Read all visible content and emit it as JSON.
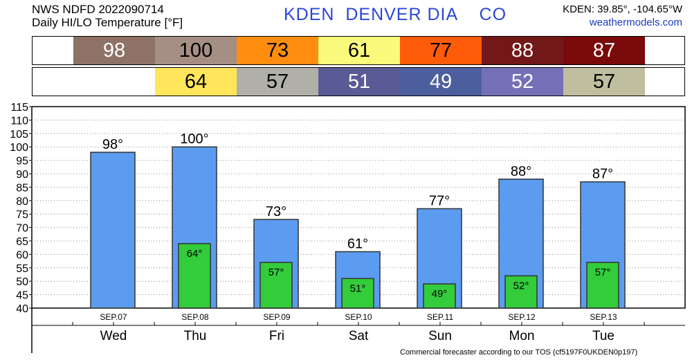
{
  "header": {
    "line1": "NWS NDFD 2022090714",
    "line2": "Daily HI/LO Temperature [°F]",
    "station": "KDEN  DENVER DIA    CO",
    "coords": "KDEN: 39.85°, -104.65°W",
    "site": "weathermodels.com"
  },
  "hi_strip": [
    {
      "text": "98",
      "color": "#8e7265",
      "text_color": "#ffffff"
    },
    {
      "text": "100",
      "color": "#a58e83",
      "text_color": "#000000"
    },
    {
      "text": "73",
      "color": "#ff8d10",
      "text_color": "#000000"
    },
    {
      "text": "61",
      "color": "#fafa7c",
      "text_color": "#000000"
    },
    {
      "text": "77",
      "color": "#ff5c0a",
      "text_color": "#000000"
    },
    {
      "text": "88",
      "color": "#731818",
      "text_color": "#ffffff"
    },
    {
      "text": "87",
      "color": "#7a0a0a",
      "text_color": "#ffffff"
    }
  ],
  "lo_strip": [
    null,
    {
      "text": "64",
      "color": "#ffe65a",
      "text_color": "#000000"
    },
    {
      "text": "57",
      "color": "#b0b0a8",
      "text_color": "#000000"
    },
    {
      "text": "51",
      "color": "#5a5a96",
      "text_color": "#ffffff"
    },
    {
      "text": "49",
      "color": "#4d5e9e",
      "text_color": "#ffffff"
    },
    {
      "text": "52",
      "color": "#7470b8",
      "text_color": "#ffffff"
    },
    {
      "text": "57",
      "color": "#bfbf9f",
      "text_color": "#000000"
    }
  ],
  "chart_data": {
    "type": "bar",
    "categories": [
      "SEP.07",
      "SEP.08",
      "SEP.09",
      "SEP.10",
      "SEP.11",
      "SEP.12",
      "SEP.13"
    ],
    "days": [
      "Wed",
      "Thu",
      "Fri",
      "Sat",
      "Sun",
      "Mon",
      "Tue"
    ],
    "series": [
      {
        "values": [
          98,
          100,
          73,
          61,
          77,
          88,
          87
        ],
        "color": "#5b9cf0"
      },
      {
        "values": [
          null,
          64,
          57,
          51,
          49,
          52,
          57
        ],
        "color": "#33cc3a"
      }
    ],
    "hi_labels": [
      "98°",
      "100°",
      "73°",
      "61°",
      "77°",
      "88°",
      "87°"
    ],
    "lo_labels": [
      "",
      "64°",
      "57°",
      "51°",
      "49°",
      "52°",
      "57°"
    ],
    "ylim": [
      40,
      115
    ],
    "yticks": [
      "40",
      "45",
      "50",
      "55",
      "60",
      "65",
      "70",
      "75",
      "80",
      "85",
      "90",
      "95",
      "100",
      "105",
      "110",
      "115"
    ],
    "grid": true
  },
  "footer": "Commercial forecaster according to our TOS (cf5197F0UKDEN0p197)"
}
